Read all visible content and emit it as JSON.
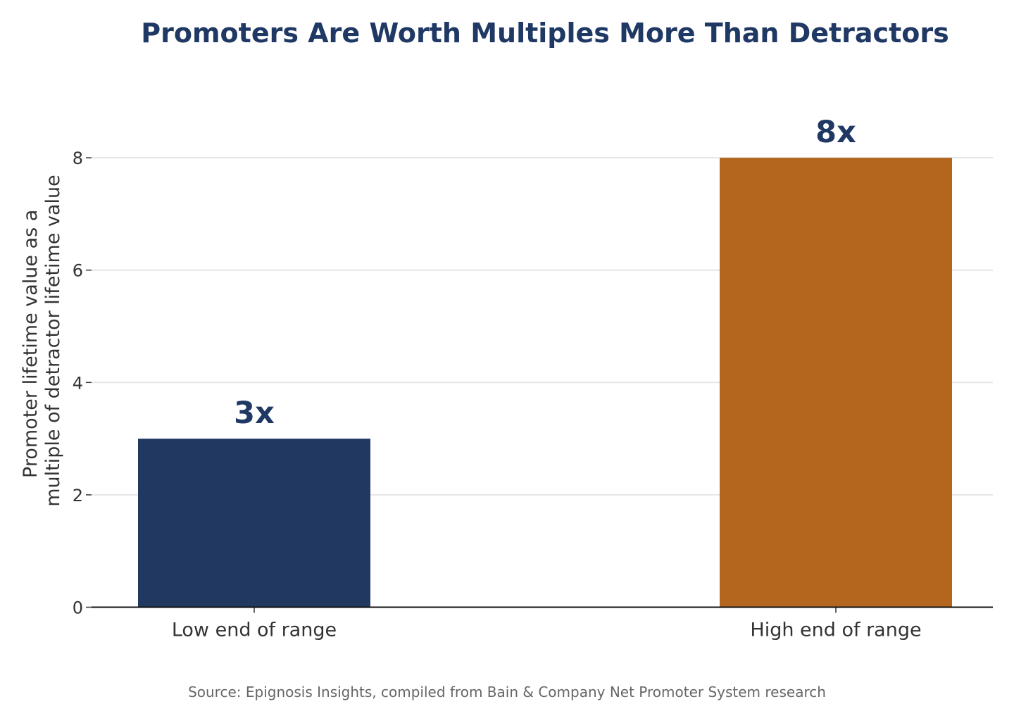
{
  "chart_data": {
    "type": "bar",
    "title": "Promoters Are Worth Multiples More Than Detractors",
    "ylabel_lines": [
      "Promoter lifetime value as a",
      "multiple of detractor lifetime value"
    ],
    "xlabel": "",
    "categories": [
      "Low end of range",
      "High end of range"
    ],
    "values": [
      3,
      8
    ],
    "data_labels": [
      "3x",
      "8x"
    ],
    "bar_colors": [
      "#213861",
      "#B4661F"
    ],
    "ylim": [
      0,
      9
    ],
    "yticks": [
      "0",
      "2",
      "4",
      "6",
      "8"
    ],
    "grid": true,
    "legend": "none",
    "source": "Source: Epignosis Insights, compiled from Bain & Company Net Promoter System research"
  },
  "colors": {
    "title": "#1F3864",
    "label": "#1F3864",
    "grid": "#E6E6E6",
    "axis": "#111111"
  }
}
